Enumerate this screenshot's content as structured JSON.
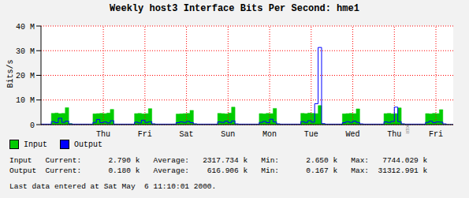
{
  "chart_data": {
    "type": "area",
    "title": "Weekly host3 Interface Bits Per Second: hme1",
    "y_label": "Bits/s",
    "watermark": "RRDTOOL / TOBI OETIKER",
    "categories": [
      null,
      null,
      null,
      null,
      null,
      null,
      null,
      null,
      null,
      null,
      null,
      null,
      null,
      null,
      null,
      null,
      null,
      null,
      "Thu",
      null,
      null,
      null,
      null,
      null,
      null,
      null,
      null,
      null,
      null,
      null,
      "Fri",
      null,
      null,
      null,
      null,
      null,
      null,
      null,
      null,
      null,
      null,
      null,
      "Sat",
      null,
      null,
      null,
      null,
      null,
      null,
      null,
      null,
      null,
      null,
      null,
      "Sun",
      null,
      null,
      null,
      null,
      null,
      null,
      null,
      null,
      null,
      null,
      null,
      "Mon",
      null,
      null,
      null,
      null,
      null,
      null,
      null,
      null,
      null,
      null,
      null,
      "Tue",
      null,
      null,
      null,
      null,
      null,
      null,
      null,
      null,
      null,
      null,
      null,
      "Wed",
      null,
      null,
      null,
      null,
      null,
      null,
      null,
      null,
      null,
      null,
      null,
      "Thu",
      null,
      null,
      null,
      null,
      null,
      null,
      null,
      null,
      null,
      null,
      null,
      "Fri",
      null,
      null,
      null,
      null,
      null
    ],
    "series": [
      {
        "name": "Input",
        "color": "#00cc00",
        "type": "area",
        "values": [
          0.1,
          0.1,
          0.1,
          4.6,
          4.7,
          4.5,
          4.6,
          6.9,
          0.4,
          0.1,
          0.1,
          0.1,
          0.1,
          0.1,
          0.1,
          4.4,
          4.5,
          4.6,
          4.5,
          4.7,
          6.2,
          0.2,
          0.1,
          0.1,
          0.1,
          0.1,
          0.1,
          4.5,
          4.6,
          4.4,
          4.5,
          6.5,
          0.3,
          0.1,
          0.1,
          0.1,
          0.1,
          0.1,
          0.2,
          4.3,
          4.4,
          4.5,
          4.6,
          5.8,
          0.3,
          0.1,
          0.1,
          0.1,
          0.1,
          0.1,
          0.1,
          4.6,
          4.5,
          4.4,
          4.7,
          7.1,
          0.2,
          0.1,
          0.1,
          0.1,
          0.1,
          0.1,
          0.1,
          4.5,
          4.4,
          4.6,
          4.5,
          6.6,
          0.3,
          0.1,
          0.1,
          0.1,
          0.1,
          0.1,
          0.1,
          4.6,
          4.5,
          4.7,
          4.6,
          4.5,
          7.744,
          0.3,
          0.1,
          0.1,
          0.1,
          0.1,
          0.1,
          4.4,
          4.5,
          4.6,
          4.5,
          6.4,
          0.2,
          0.1,
          0.1,
          0.1,
          0.1,
          0.1,
          0.1,
          4.5,
          4.6,
          4.4,
          4.5,
          6.8,
          0.3,
          0.1,
          0.1,
          0.1,
          0.1,
          0.1,
          0.1,
          4.5,
          4.4,
          4.6,
          4.5,
          6.1,
          0.2,
          0.0028,
          0.0028,
          0.0028
        ]
      },
      {
        "name": "Output",
        "color": "#0000ff",
        "type": "line",
        "values": [
          0.2,
          0.2,
          0.2,
          1.2,
          0.8,
          2.6,
          0.9,
          1.4,
          0.3,
          0.2,
          0.2,
          0.2,
          0.2,
          0.2,
          0.2,
          0.9,
          2.1,
          0.8,
          1.1,
          0.7,
          1.6,
          0.2,
          0.2,
          0.2,
          0.2,
          0.2,
          0.2,
          1.0,
          0.7,
          1.8,
          0.9,
          1.2,
          0.3,
          0.2,
          0.2,
          0.2,
          0.2,
          0.2,
          0.2,
          0.8,
          1.1,
          0.9,
          1.3,
          0.8,
          0.3,
          0.2,
          0.2,
          0.2,
          0.2,
          0.2,
          0.2,
          1.1,
          0.9,
          1.4,
          0.8,
          1.5,
          0.3,
          0.2,
          0.2,
          0.2,
          0.2,
          0.2,
          0.2,
          0.9,
          1.3,
          0.8,
          2.2,
          1.1,
          0.3,
          0.2,
          0.2,
          0.2,
          0.2,
          0.2,
          0.2,
          1.2,
          0.9,
          1.6,
          1.0,
          8.5,
          31.313,
          0.4,
          0.2,
          0.2,
          0.2,
          0.2,
          0.2,
          0.8,
          1.2,
          0.9,
          1.4,
          0.9,
          0.3,
          0.2,
          0.2,
          0.2,
          0.2,
          0.2,
          0.2,
          1.1,
          0.9,
          1.3,
          7.1,
          1.2,
          0.3,
          0.2,
          0.2,
          0.2,
          0.2,
          0.2,
          0.2,
          0.9,
          1.4,
          0.8,
          1.1,
          1.0,
          0.3,
          0.00018,
          0.00018,
          0.00018
        ]
      }
    ],
    "ylim": [
      0,
      40
    ],
    "yticks": [
      0,
      {
        "value": 10,
        "label": "10 M"
      },
      {
        "value": 20,
        "label": "20 M"
      },
      {
        "value": 30,
        "label": "30 M"
      },
      {
        "value": 40,
        "label": "40 M"
      }
    ],
    "grid": true,
    "legend": "bottom left",
    "stats": [
      "Input   Current:      2.790 k   Average:   2317.734 k   Min:      2.650 k   Max:   7744.029 k",
      "Output  Current:      0.180 k   Average:    616.906 k   Min:      0.167 k   Max:  31312.991 k"
    ],
    "footer": "Last data entered at Sat May  6 11:10:01 2000."
  }
}
